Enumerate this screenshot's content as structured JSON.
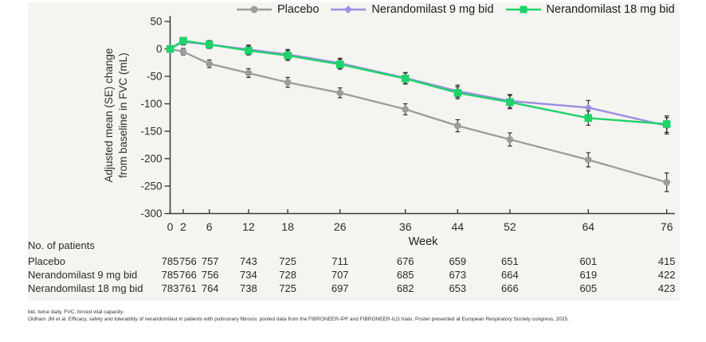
{
  "colors": {
    "panel_bg": "#f5f4f1",
    "axis": "#3a3a3a",
    "error_bar": "#222222",
    "placebo": "#9c9c9c",
    "nerandomilast_9mg": "#9d8ee2",
    "nerandomilast_18mg": "#1ed36a"
  },
  "chart_data": {
    "type": "line",
    "x": [
      0,
      2,
      6,
      12,
      18,
      26,
      36,
      44,
      52,
      64,
      76
    ],
    "xlabel": "Week",
    "ylabel_lines": [
      "Adjusted mean (SE) change",
      "from baseline in FVC (mL)"
    ],
    "ylim": [
      -300,
      50
    ],
    "yticks": [
      50,
      0,
      -50,
      -100,
      -150,
      -200,
      -250,
      -300
    ],
    "xticks": [
      0,
      2,
      6,
      12,
      18,
      26,
      36,
      44,
      52,
      64,
      76
    ],
    "grid": false,
    "legend_position": "top",
    "series": [
      {
        "name": "Placebo",
        "color": "#9c9c9c",
        "marker": "circle",
        "values": [
          0,
          -5,
          -27,
          -44,
          -61,
          -80,
          -110,
          -140,
          -165,
          -202,
          -243
        ],
        "se": [
          0,
          6,
          7,
          8,
          9,
          9,
          10,
          11,
          12,
          13,
          17
        ]
      },
      {
        "name": "Nerandomilast 9 mg bid",
        "color": "#9d8ee2",
        "marker": "diamond",
        "values": [
          0,
          13,
          8,
          -1,
          -10,
          -26,
          -53,
          -77,
          -95,
          -107,
          -140
        ],
        "se": [
          0,
          6,
          7,
          8,
          9,
          9,
          10,
          11,
          12,
          13,
          15
        ]
      },
      {
        "name": "Nerandomilast 18 mg bid",
        "color": "#1ed36a",
        "marker": "square",
        "values": [
          0,
          15,
          8,
          -3,
          -12,
          -28,
          -54,
          -80,
          -97,
          -126,
          -137
        ],
        "se": [
          0,
          6,
          7,
          8,
          9,
          9,
          10,
          11,
          12,
          13,
          15
        ]
      }
    ]
  },
  "patients_table": {
    "title": "No. of patients",
    "rows": [
      {
        "label": "Placebo",
        "values": [
          785,
          756,
          757,
          743,
          725,
          711,
          676,
          659,
          651,
          601,
          415
        ]
      },
      {
        "label": "Nerandomilast 9 mg bid",
        "values": [
          785,
          766,
          756,
          734,
          728,
          707,
          685,
          673,
          664,
          619,
          422
        ]
      },
      {
        "label": "Nerandomilast 18 mg bid",
        "values": [
          783,
          761,
          764,
          738,
          725,
          697,
          682,
          653,
          666,
          605,
          423
        ]
      }
    ]
  },
  "footnotes": [
    "bid, twice daily. FVC, forced vital capacity.",
    "Oldham JM et al. Efficacy, safety and tolerability of nerandomilast in patients with pulmonary fibrosis: pooled data from the FIBRONEER-IPF and FIBRONEER-ILD trials. Poster presented at European Respiratory Society congress, 2025."
  ]
}
